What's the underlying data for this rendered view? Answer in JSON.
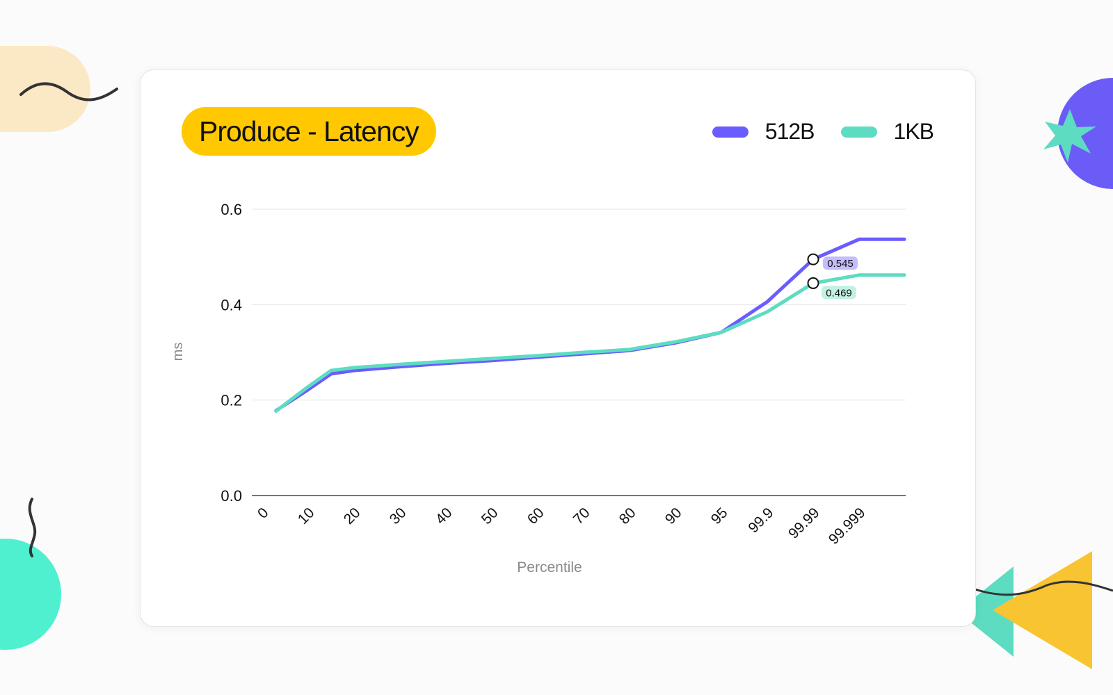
{
  "colors": {
    "background": "#fbfbfb",
    "card": "#ffffff",
    "title_pill": "#ffc800",
    "series_512b": "#6a5cff",
    "series_1kb": "#5ddcc2",
    "badge_512b": "#c4bdfb",
    "badge_1kb": "#c2f1e4",
    "deco_peach": "#fbe8c4",
    "deco_purple": "#6b5cf7",
    "deco_mint": "#4ff0d0",
    "deco_teal": "#5ddcc2",
    "deco_yellow": "#f9c432",
    "deco_line": "#333333"
  },
  "chart_data": {
    "type": "line",
    "title": "Produce - Latency",
    "xlabel": "Percentile",
    "ylabel": "ms",
    "categories": [
      "0",
      "10",
      "20",
      "30",
      "40",
      "50",
      "60",
      "70",
      "80",
      "90",
      "95",
      "99.9",
      "99.99",
      "99.999"
    ],
    "ylim": [
      0,
      0.6
    ],
    "yticks": [
      "0.0",
      "0.2",
      "0.4",
      "0.6"
    ],
    "grid": true,
    "legend_position": "top-right",
    "series": [
      {
        "name": "512B",
        "color": "#6a5cff",
        "points": [
          [
            0.3,
            0.178
          ],
          [
            1,
            0.222
          ],
          [
            1.5,
            0.255
          ],
          [
            2,
            0.262
          ],
          [
            3,
            0.27
          ],
          [
            4,
            0.277
          ],
          [
            5,
            0.283
          ],
          [
            6,
            0.29
          ],
          [
            7,
            0.297
          ],
          [
            8,
            0.304
          ],
          [
            9,
            0.32
          ],
          [
            10,
            0.342
          ],
          [
            11,
            0.406
          ],
          [
            12,
            0.495
          ],
          [
            13,
            0.537
          ],
          [
            14,
            0.537
          ]
        ]
      },
      {
        "name": "1KB",
        "color": "#5ddcc2",
        "points": [
          [
            0.3,
            0.177
          ],
          [
            1,
            0.228
          ],
          [
            1.5,
            0.262
          ],
          [
            2,
            0.268
          ],
          [
            3,
            0.275
          ],
          [
            4,
            0.281
          ],
          [
            5,
            0.287
          ],
          [
            6,
            0.293
          ],
          [
            7,
            0.3
          ],
          [
            8,
            0.306
          ],
          [
            9,
            0.322
          ],
          [
            10,
            0.342
          ],
          [
            11,
            0.385
          ],
          [
            12,
            0.445
          ],
          [
            13,
            0.462
          ],
          [
            14,
            0.462
          ]
        ]
      }
    ],
    "annotations": [
      {
        "series": "512B",
        "x": 12,
        "y": 0.495,
        "label": "0.545"
      },
      {
        "series": "1KB",
        "x": 12,
        "y": 0.445,
        "label": "0.469"
      }
    ]
  }
}
